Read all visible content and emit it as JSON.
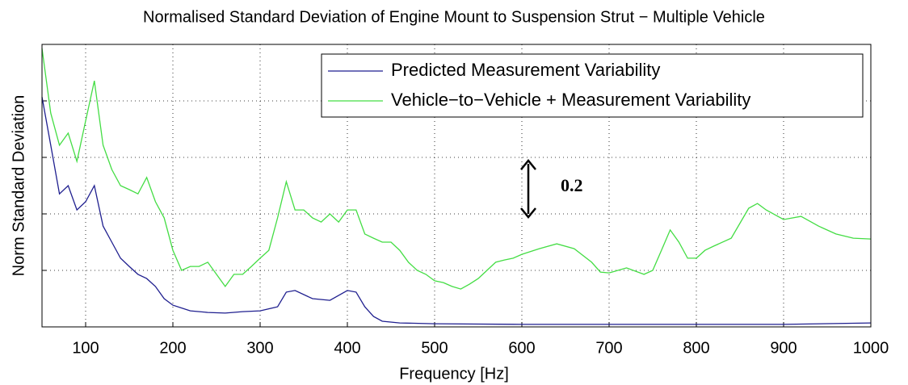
{
  "chart_data": {
    "type": "line",
    "title": "Normalised Standard Deviation of Engine Mount to Suspension Strut − Multiple Vehicle",
    "xlabel": "Frequency [Hz]",
    "ylabel": "Norm Standard Deviation",
    "xlim": [
      50,
      1000
    ],
    "xticks": [
      100,
      200,
      300,
      400,
      500,
      600,
      700,
      800,
      900,
      1000
    ],
    "ylim": [
      0,
      1
    ],
    "yticks": [
      0,
      0.2,
      0.4,
      0.6,
      0.8,
      1
    ],
    "show_ytick_labels": false,
    "grid": true,
    "legend": "upper right",
    "annotation": {
      "text": "0.2",
      "value": 0.2
    },
    "series": [
      {
        "name": "Predicted Measurement Variability",
        "color": "#1f1f8f",
        "x": [
          50,
          60,
          70,
          80,
          90,
          100,
          110,
          120,
          130,
          140,
          150,
          160,
          170,
          180,
          190,
          200,
          220,
          240,
          260,
          280,
          300,
          320,
          330,
          340,
          360,
          380,
          400,
          410,
          420,
          430,
          440,
          460,
          500,
          600,
          700,
          800,
          900,
          1000
        ],
        "values": [
          0.814,
          0.643,
          0.471,
          0.5,
          0.414,
          0.443,
          0.5,
          0.357,
          0.3,
          0.243,
          0.214,
          0.186,
          0.171,
          0.143,
          0.1,
          0.077,
          0.057,
          0.051,
          0.049,
          0.054,
          0.057,
          0.071,
          0.123,
          0.129,
          0.1,
          0.094,
          0.129,
          0.123,
          0.071,
          0.037,
          0.02,
          0.014,
          0.011,
          0.009,
          0.009,
          0.009,
          0.009,
          0.014
        ]
      },
      {
        "name": "Vehicle−to−Vehicle + Measurement Variability",
        "color": "#44dd44",
        "x": [
          50,
          60,
          70,
          80,
          90,
          100,
          110,
          120,
          130,
          140,
          150,
          160,
          170,
          180,
          190,
          200,
          210,
          220,
          230,
          240,
          250,
          260,
          270,
          280,
          290,
          300,
          310,
          320,
          330,
          340,
          350,
          360,
          370,
          380,
          390,
          400,
          410,
          420,
          430,
          440,
          450,
          460,
          470,
          480,
          490,
          500,
          510,
          520,
          530,
          540,
          550,
          560,
          570,
          580,
          590,
          600,
          620,
          640,
          660,
          680,
          690,
          700,
          720,
          740,
          750,
          760,
          770,
          780,
          790,
          800,
          810,
          820,
          840,
          860,
          870,
          880,
          900,
          920,
          940,
          960,
          980,
          1000
        ],
        "values": [
          0.986,
          0.757,
          0.643,
          0.686,
          0.586,
          0.729,
          0.871,
          0.643,
          0.557,
          0.5,
          0.486,
          0.471,
          0.529,
          0.443,
          0.386,
          0.271,
          0.2,
          0.214,
          0.214,
          0.229,
          0.186,
          0.143,
          0.186,
          0.186,
          0.214,
          0.243,
          0.271,
          0.386,
          0.514,
          0.414,
          0.414,
          0.386,
          0.371,
          0.4,
          0.371,
          0.414,
          0.414,
          0.329,
          0.314,
          0.3,
          0.3,
          0.271,
          0.229,
          0.2,
          0.186,
          0.163,
          0.157,
          0.143,
          0.134,
          0.151,
          0.171,
          0.2,
          0.229,
          0.237,
          0.243,
          0.257,
          0.277,
          0.294,
          0.277,
          0.229,
          0.194,
          0.191,
          0.209,
          0.186,
          0.2,
          0.271,
          0.343,
          0.3,
          0.243,
          0.243,
          0.271,
          0.286,
          0.314,
          0.42,
          0.437,
          0.414,
          0.38,
          0.391,
          0.357,
          0.329,
          0.314,
          0.311
        ]
      }
    ]
  }
}
